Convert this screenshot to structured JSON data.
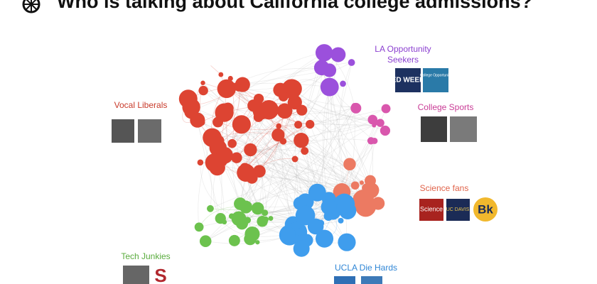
{
  "header": {
    "title": "Who is talking about California college admissions?"
  },
  "clusters": [
    {
      "label": [
        "Vocal Liberals"
      ]
    },
    {
      "label": [
        "LA Opportunity",
        "Seekers"
      ],
      "logos": [
        "ED WEEK",
        "College Opportunity"
      ]
    },
    {
      "label": [
        "College Sports"
      ]
    },
    {
      "label": [
        "Science fans"
      ],
      "logos": [
        "Science",
        "UC DAVIS",
        "Bk"
      ]
    },
    {
      "label": [
        "UCLA Die Hards"
      ]
    },
    {
      "label": [
        "Tech Junkies"
      ],
      "logos": [
        "S"
      ]
    }
  ]
}
